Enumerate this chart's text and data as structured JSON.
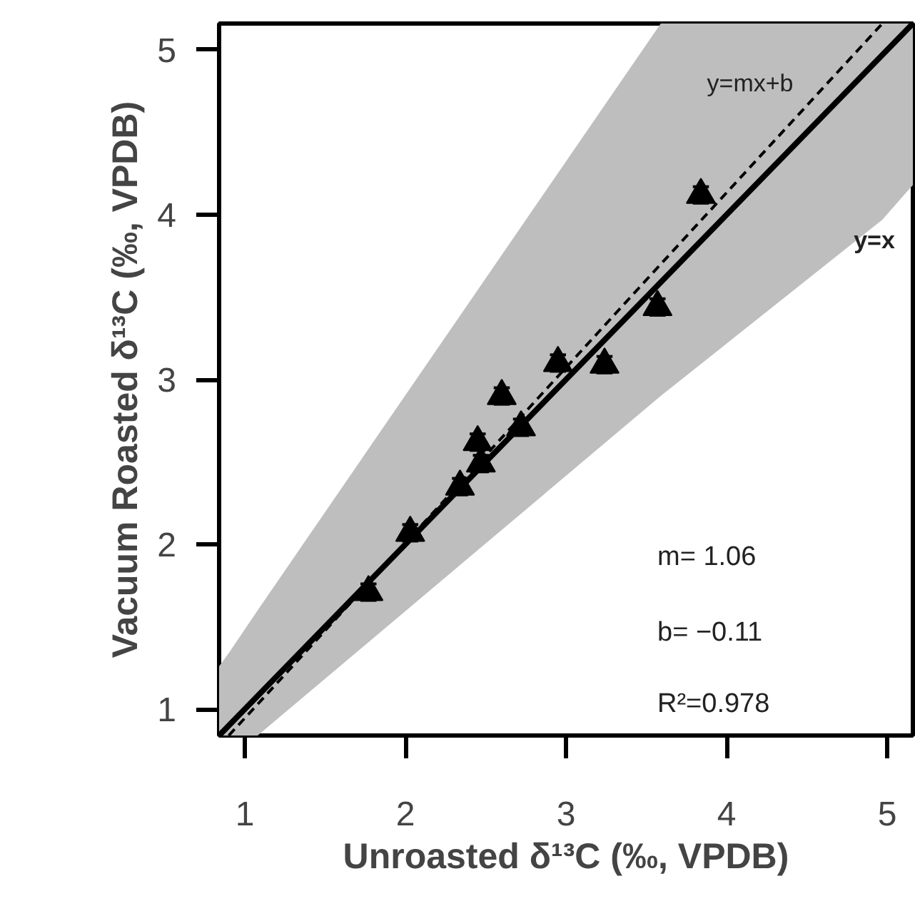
{
  "chart_data": {
    "type": "scatter",
    "xlabel": "Unroasted δ¹³C (‰, VPDB)",
    "ylabel": "Vacuum Roasted δ¹³C (‰, VPDB)",
    "xlim": [
      0.84,
      5.16
    ],
    "ylim": [
      0.84,
      5.16
    ],
    "xticks": [
      1,
      2,
      3,
      4,
      5
    ],
    "yticks": [
      1,
      2,
      3,
      4,
      5
    ],
    "grid": false,
    "series": [
      {
        "type": "line",
        "color": "#000000",
        "line_style": "dashed",
        "x": [
          0.84,
          0.9,
          1.08,
          3.59,
          4.97,
          5.16
        ],
        "values": [
          null,
          0.84,
          1.03,
          3.7,
          5.16,
          null
        ],
        "lower": [
          0.84,
          0.84,
          0.84,
          2.9,
          3.97,
          4.18
        ],
        "upper": [
          1.26,
          1.34,
          1.6,
          5.16,
          5.16,
          5.16
        ]
      },
      {
        "type": "line",
        "color": "#000000",
        "line_style": "solid",
        "x": [
          0.84,
          5.16
        ],
        "values": [
          0.84,
          5.16
        ]
      },
      {
        "color": "#000000",
        "marker": "triangle",
        "x": [
          1.77,
          2.03,
          2.34,
          2.47,
          2.45,
          2.6,
          2.72,
          2.95,
          3.24,
          3.57,
          3.84
        ],
        "values": [
          1.71,
          2.07,
          2.35,
          2.49,
          2.62,
          2.9,
          2.71,
          3.1,
          3.09,
          3.44,
          4.12
        ],
        "errors": [
          0.05,
          0.05,
          0.05,
          0.05,
          0.05,
          0.05,
          0.05,
          0.05,
          0.05,
          0.05,
          0.05
        ],
        "xerrors": [
          0.05,
          0.05,
          0.05,
          0.05,
          0.05,
          0.05,
          0.05,
          0.05,
          0.05,
          0.05,
          0.05
        ]
      }
    ],
    "annotations": [
      "y=mx+b",
      "y=x",
      "m= 1.06",
      "b= −0.11",
      "R²=0.978"
    ]
  }
}
